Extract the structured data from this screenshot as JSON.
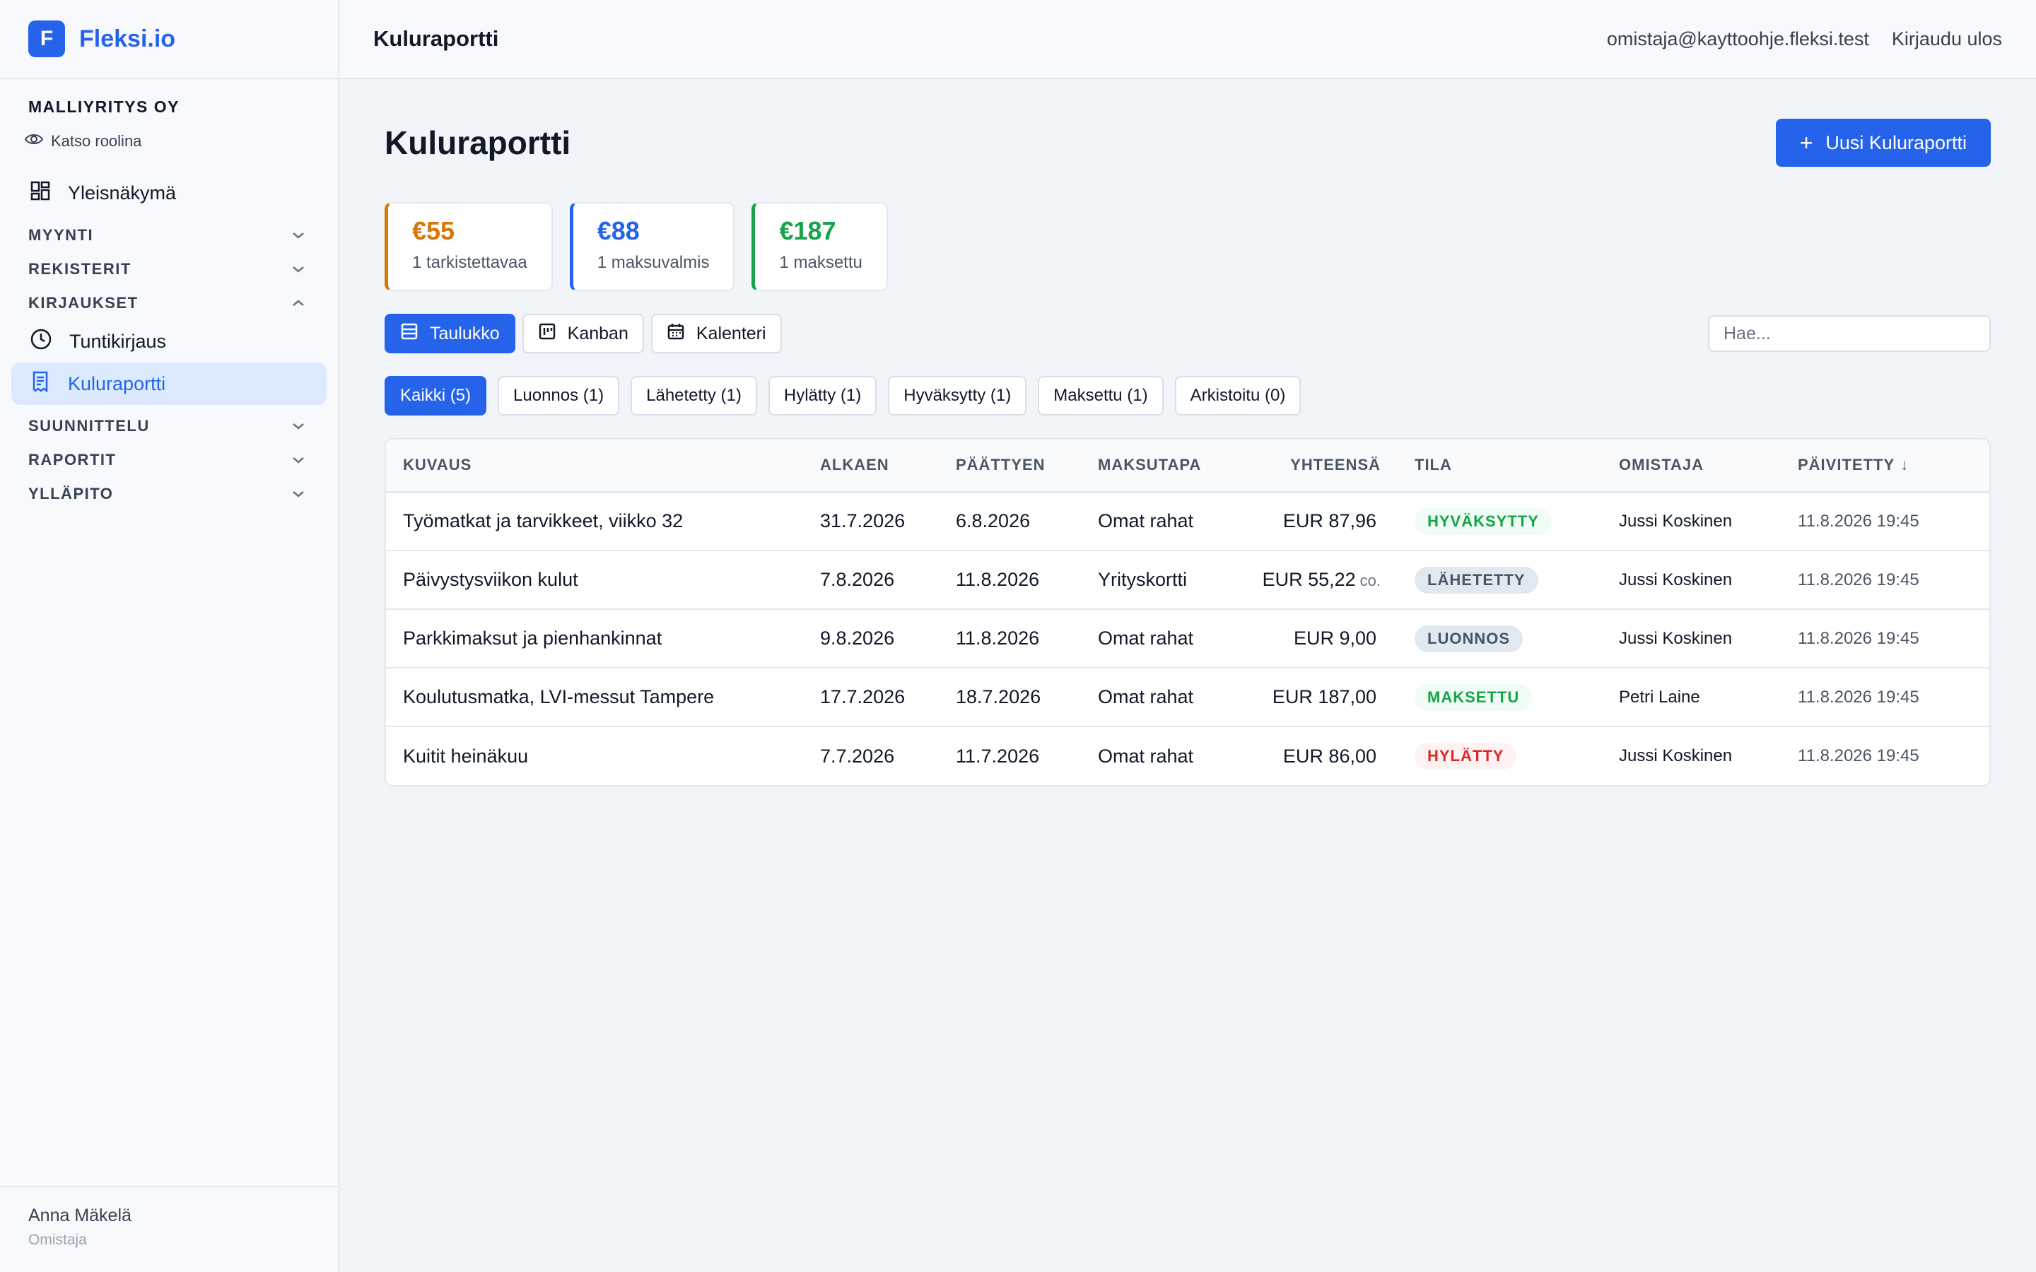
{
  "brand": {
    "logo_letter": "F",
    "name": "Fleksi.io",
    "color": "#2563eb"
  },
  "sidebar": {
    "org_name": "MALLIYRITYS OY",
    "view_as": "Katso roolina",
    "overview": "Yleisnäkymä",
    "sections": {
      "sales": "MYYNTI",
      "registers": "REKISTERIT",
      "entries": "KIRJAUKSET",
      "planning": "SUUNNITTELU",
      "reports": "RAPORTIT",
      "admin": "YLLÄPITO"
    },
    "entries_items": {
      "time": "Tuntikirjaus",
      "expense": "Kuluraportti"
    },
    "user": {
      "name": "Anna Mäkelä",
      "role": "Omistaja"
    }
  },
  "topbar": {
    "title": "Kuluraportti",
    "email": "omistaja@kayttoohje.fleksi.test",
    "logout": "Kirjaudu ulos"
  },
  "page": {
    "title": "Kuluraportti",
    "new_button": "Uusi Kuluraportti",
    "new_button_icon": "+"
  },
  "stats": [
    {
      "value": "€55",
      "label": "1 tarkistettavaa",
      "color": "#d97706"
    },
    {
      "value": "€88",
      "label": "1 maksuvalmis",
      "color": "#2563eb"
    },
    {
      "value": "€187",
      "label": "1 maksettu",
      "color": "#16a34a"
    }
  ],
  "views": {
    "table": "Taulukko",
    "kanban": "Kanban",
    "calendar": "Kalenteri"
  },
  "search": {
    "placeholder": "Hae..."
  },
  "filters": {
    "all": "Kaikki (5)",
    "draft": "Luonnos (1)",
    "sent": "Lähetetty (1)",
    "rejected": "Hylätty (1)",
    "approved": "Hyväksytty (1)",
    "paid": "Maksettu (1)",
    "archived": "Arkistoitu (0)"
  },
  "table": {
    "headers": {
      "description": "KUVAUS",
      "start": "ALKAEN",
      "end": "PÄÄTTYEN",
      "payment": "MAKSUTAPA",
      "total": "YHTEENSÄ",
      "status": "TILA",
      "owner": "OMISTAJA",
      "updated": "PÄIVITETTY",
      "sort_icon": "↓"
    },
    "rows": [
      {
        "description": "Työmatkat ja tarvikkeet, viikko 32",
        "start": "31.7.2026",
        "end": "6.8.2026",
        "payment": "Omat rahat",
        "total": "EUR 87,96",
        "total_suffix": "",
        "status": "HYVÄKSYTTY",
        "status_color": "#16a34a",
        "status_bg": "#f0fdf4",
        "owner": "Jussi Koskinen",
        "updated": "11.8.2026 19:45"
      },
      {
        "description": "Päivystysviikon kulut",
        "start": "7.8.2026",
        "end": "11.8.2026",
        "payment": "Yrityskortti",
        "total": "EUR 55,22",
        "total_suffix": "co.",
        "status": "LÄHETETTY",
        "status_color": "#475569",
        "status_bg": "#e2e8f0",
        "owner": "Jussi Koskinen",
        "updated": "11.8.2026 19:45"
      },
      {
        "description": "Parkkimaksut ja pienhankinnat",
        "start": "9.8.2026",
        "end": "11.8.2026",
        "payment": "Omat rahat",
        "total": "EUR 9,00",
        "total_suffix": "",
        "status": "LUONNOS",
        "status_color": "#475569",
        "status_bg": "#e2e8f0",
        "owner": "Jussi Koskinen",
        "updated": "11.8.2026 19:45"
      },
      {
        "description": "Koulutusmatka, LVI-messut Tampere",
        "start": "17.7.2026",
        "end": "18.7.2026",
        "payment": "Omat rahat",
        "total": "EUR 187,00",
        "total_suffix": "",
        "status": "MAKSETTU",
        "status_color": "#16a34a",
        "status_bg": "#f0fdf4",
        "owner": "Petri Laine",
        "updated": "11.8.2026 19:45"
      },
      {
        "description": "Kuitit heinäkuu",
        "start": "7.7.2026",
        "end": "11.7.2026",
        "payment": "Omat rahat",
        "total": "EUR 86,00",
        "total_suffix": "",
        "status": "HYLÄTTY",
        "status_color": "#dc2626",
        "status_bg": "#fef2f2",
        "owner": "Jussi Koskinen",
        "updated": "11.8.2026 19:45"
      }
    ]
  }
}
